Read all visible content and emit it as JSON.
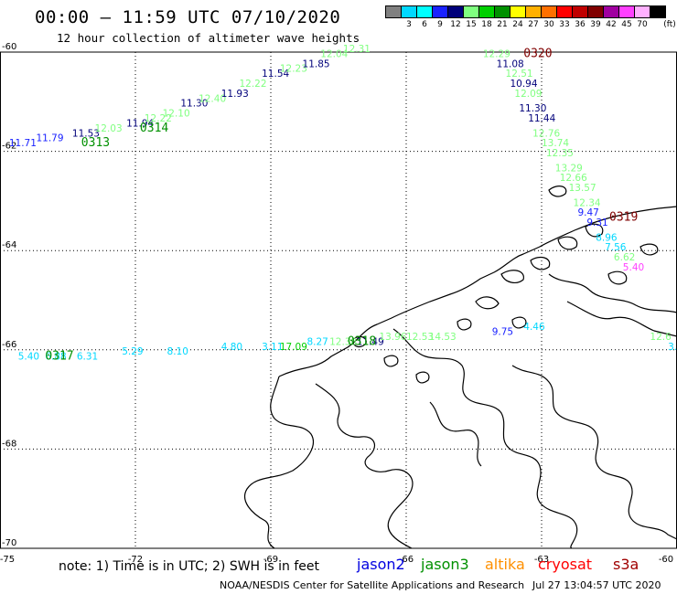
{
  "header": {
    "title": "00:00 – 11:59 UTC 07/10/2020",
    "subtitle": "12 hour collection of altimeter wave heights"
  },
  "color_scale": {
    "unit_label": "(ft)",
    "bins": [
      {
        "label": "",
        "color": "#808080"
      },
      {
        "label": "3",
        "color": "#00d8ff"
      },
      {
        "label": "6",
        "color": "#00ffff"
      },
      {
        "label": "9",
        "color": "#1a22ff"
      },
      {
        "label": "12",
        "color": "#00007a"
      },
      {
        "label": "15",
        "color": "#80ff80"
      },
      {
        "label": "18",
        "color": "#00d000"
      },
      {
        "label": "21",
        "color": "#009000"
      },
      {
        "label": "24",
        "color": "#ffff00"
      },
      {
        "label": "27",
        "color": "#ffb000"
      },
      {
        "label": "30",
        "color": "#ff7000"
      },
      {
        "label": "33",
        "color": "#ff0000"
      },
      {
        "label": "36",
        "color": "#c00000"
      },
      {
        "label": "39",
        "color": "#800000"
      },
      {
        "label": "42",
        "color": "#a000a0"
      },
      {
        "label": "45",
        "color": "#ff40ff"
      },
      {
        "label": "70",
        "color": "#ffb0ff"
      },
      {
        "label": "",
        "color": "#000000"
      }
    ]
  },
  "map": {
    "lon_ticks": [
      "-75",
      "-72",
      "-69",
      "-66",
      "-63",
      "-60"
    ],
    "lat_ticks": [
      "-60",
      "-62",
      "-64",
      "-66",
      "-68",
      "-70"
    ],
    "lon_range": [
      -75,
      -60
    ],
    "lat_range": [
      -70,
      -60
    ],
    "tracks": [
      {
        "id": "track-0313-0314",
        "passes": [
          {
            "label": "0313",
            "color": "#009000",
            "lon": -73.2,
            "lat": -61.9
          },
          {
            "label": "0314",
            "color": "#009000",
            "lon": -71.9,
            "lat": -61.6
          }
        ],
        "readings": [
          {
            "v": "11.71",
            "c": "#1a22ff",
            "lon": -74.8,
            "lat": -61.9
          },
          {
            "v": "11.79",
            "c": "#1a22ff",
            "lon": -74.2,
            "lat": -61.8
          },
          {
            "v": "11.53",
            "c": "#00007a",
            "lon": -73.4,
            "lat": -61.7
          },
          {
            "v": "12.03",
            "c": "#80ff80",
            "lon": -72.9,
            "lat": -61.6
          },
          {
            "v": "11.94",
            "c": "#00007a",
            "lon": -72.2,
            "lat": -61.5
          },
          {
            "v": "12.22",
            "c": "#80ff80",
            "lon": -71.8,
            "lat": -61.4
          },
          {
            "v": "12.10",
            "c": "#80ff80",
            "lon": -71.4,
            "lat": -61.3
          },
          {
            "v": "11.30",
            "c": "#00007a",
            "lon": -71.0,
            "lat": -61.1
          },
          {
            "v": "12.40",
            "c": "#80ff80",
            "lon": -70.6,
            "lat": -61.0
          },
          {
            "v": "11.93",
            "c": "#00007a",
            "lon": -70.1,
            "lat": -60.9
          },
          {
            "v": "12.22",
            "c": "#80ff80",
            "lon": -69.7,
            "lat": -60.7
          },
          {
            "v": "11.54",
            "c": "#00007a",
            "lon": -69.2,
            "lat": -60.5
          },
          {
            "v": "12.23",
            "c": "#80ff80",
            "lon": -68.8,
            "lat": -60.4
          },
          {
            "v": "11.85",
            "c": "#00007a",
            "lon": -68.3,
            "lat": -60.3
          },
          {
            "v": "12.04",
            "c": "#80ff80",
            "lon": -67.9,
            "lat": -60.1
          },
          {
            "v": "12.31",
            "c": "#80ff80",
            "lon": -67.4,
            "lat": -60.0
          }
        ]
      },
      {
        "id": "track-0320-0319",
        "passes": [
          {
            "label": "0320",
            "color": "#800000",
            "lon": -63.4,
            "lat": -60.1
          },
          {
            "label": "0319",
            "color": "#800000",
            "lon": -61.5,
            "lat": -63.4
          }
        ],
        "readings": [
          {
            "v": "12.29",
            "c": "#80ff80",
            "lon": -64.3,
            "lat": -60.1
          },
          {
            "v": "11.08",
            "c": "#00007a",
            "lon": -64.0,
            "lat": -60.3
          },
          {
            "v": "12.51",
            "c": "#80ff80",
            "lon": -63.8,
            "lat": -60.5
          },
          {
            "v": "10.94",
            "c": "#00007a",
            "lon": -63.7,
            "lat": -60.7
          },
          {
            "v": "12.09",
            "c": "#80ff80",
            "lon": -63.6,
            "lat": -60.9
          },
          {
            "v": "11.30",
            "c": "#00007a",
            "lon": -63.5,
            "lat": -61.2
          },
          {
            "v": "11.44",
            "c": "#00007a",
            "lon": -63.3,
            "lat": -61.4
          },
          {
            "v": "12.76",
            "c": "#80ff80",
            "lon": -63.2,
            "lat": -61.7
          },
          {
            "v": "13.74",
            "c": "#80ff80",
            "lon": -63.0,
            "lat": -61.9
          },
          {
            "v": "12.35",
            "c": "#80ff80",
            "lon": -62.9,
            "lat": -62.1
          },
          {
            "v": "13.29",
            "c": "#80ff80",
            "lon": -62.7,
            "lat": -62.4
          },
          {
            "v": "12.66",
            "c": "#80ff80",
            "lon": -62.6,
            "lat": -62.6
          },
          {
            "v": "13.57",
            "c": "#80ff80",
            "lon": -62.4,
            "lat": -62.8
          },
          {
            "v": "12.34",
            "c": "#80ff80",
            "lon": -62.3,
            "lat": -63.1
          },
          {
            "v": "9.47",
            "c": "#1a22ff",
            "lon": -62.2,
            "lat": -63.3
          },
          {
            "v": "9.31",
            "c": "#1a22ff",
            "lon": -62.0,
            "lat": -63.5
          },
          {
            "v": "8.96",
            "c": "#00d8ff",
            "lon": -61.8,
            "lat": -63.8
          },
          {
            "v": "7.56",
            "c": "#00d8ff",
            "lon": -61.6,
            "lat": -64.0
          },
          {
            "v": "6.62",
            "c": "#80ff80",
            "lon": -61.4,
            "lat": -64.2
          },
          {
            "v": "5.40",
            "c": "#ff40ff",
            "lon": -61.2,
            "lat": -64.4
          }
        ]
      },
      {
        "id": "track-0317-0318",
        "passes": [
          {
            "label": "0317",
            "color": "#009000",
            "lon": -74.0,
            "lat": -66.2
          },
          {
            "label": "0318",
            "color": "#009000",
            "lon": -67.3,
            "lat": -65.9
          }
        ],
        "readings": [
          {
            "v": "5.40",
            "c": "#00d8ff",
            "lon": -74.6,
            "lat": -66.2
          },
          {
            "v": "6.88",
            "c": "#00d8ff",
            "lon": -74.0,
            "lat": -66.2
          },
          {
            "v": "6.31",
            "c": "#00d8ff",
            "lon": -73.3,
            "lat": -66.2
          },
          {
            "v": "5.29",
            "c": "#00d8ff",
            "lon": -72.3,
            "lat": -66.1
          },
          {
            "v": "8.10",
            "c": "#00d8ff",
            "lon": -71.3,
            "lat": -66.1
          },
          {
            "v": "4.80",
            "c": "#00d8ff",
            "lon": -70.1,
            "lat": -66.0
          },
          {
            "v": "3.11",
            "c": "#00d8ff",
            "lon": -69.2,
            "lat": -66.0
          },
          {
            "v": "17.09",
            "c": "#00d000",
            "lon": -68.8,
            "lat": -66.0
          },
          {
            "v": "8.27",
            "c": "#00d8ff",
            "lon": -68.2,
            "lat": -65.9
          },
          {
            "v": "12.38",
            "c": "#80ff80",
            "lon": -67.7,
            "lat": -65.9
          },
          {
            "v": "11.49",
            "c": "#00007a",
            "lon": -67.1,
            "lat": -65.9
          },
          {
            "v": "13.96",
            "c": "#80ff80",
            "lon": -66.6,
            "lat": -65.8
          },
          {
            "v": "12.53",
            "c": "#80ff80",
            "lon": -66.0,
            "lat": -65.8
          },
          {
            "v": "14.53",
            "c": "#80ff80",
            "lon": -65.5,
            "lat": -65.8
          },
          {
            "v": "9.75",
            "c": "#1a22ff",
            "lon": -64.1,
            "lat": -65.7
          },
          {
            "v": "4.46",
            "c": "#00d8ff",
            "lon": -63.4,
            "lat": -65.6
          },
          {
            "v": "12.6",
            "c": "#80ff80",
            "lon": -60.6,
            "lat": -65.8
          },
          {
            "v": "3.",
            "c": "#00d8ff",
            "lon": -60.2,
            "lat": -66.0
          }
        ]
      }
    ]
  },
  "footer": {
    "note": "note:  1) Time is in UTC;  2) SWH is in feet",
    "satellites": [
      {
        "name": "jason2",
        "color": "#0000e0"
      },
      {
        "name": "jason3",
        "color": "#009000"
      },
      {
        "name": "altika",
        "color": "#ff9000"
      },
      {
        "name": "cryosat",
        "color": "#ff0000"
      },
      {
        "name": "s3a",
        "color": "#a00000"
      }
    ],
    "credit": "NOAA/NESDIS Center for Satellite Applications and Research",
    "timestamp": "Jul 27 13:04:57 UTC 2020"
  }
}
